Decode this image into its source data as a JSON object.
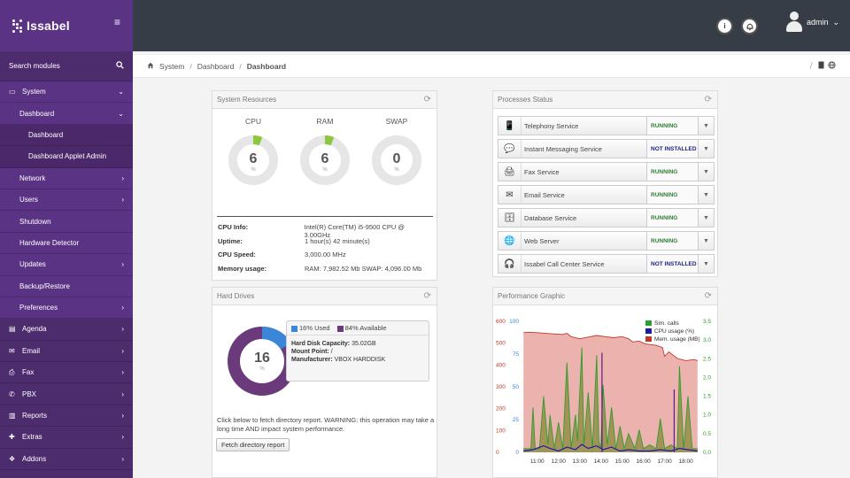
{
  "sidebar": {
    "brand": "Issabel",
    "search_label": "Search modules",
    "items": [
      {
        "label": "System",
        "level": 0,
        "icon": "monitor-icon",
        "arrow": "⌄",
        "active": true
      },
      {
        "label": "Dashboard",
        "level": 1,
        "arrow": "⌄"
      },
      {
        "label": "Dashboard",
        "level": 2
      },
      {
        "label": "Dashboard Applet Admin",
        "level": 2
      },
      {
        "label": "Network",
        "level": 1,
        "arrow": "›"
      },
      {
        "label": "Users",
        "level": 1,
        "arrow": "›"
      },
      {
        "label": "Shutdown",
        "level": 1
      },
      {
        "label": "Hardware Detector",
        "level": 1
      },
      {
        "label": "Updates",
        "level": 1,
        "arrow": "›"
      },
      {
        "label": "Backup/Restore",
        "level": 1
      },
      {
        "label": "Preferences",
        "level": 1,
        "arrow": "›"
      },
      {
        "label": "Agenda",
        "level": 0,
        "icon": "book-icon",
        "arrow": "›"
      },
      {
        "label": "Email",
        "level": 0,
        "icon": "envelope-icon",
        "arrow": "›"
      },
      {
        "label": "Fax",
        "level": 0,
        "icon": "printer-icon",
        "arrow": "›"
      },
      {
        "label": "PBX",
        "level": 0,
        "icon": "phone-icon",
        "arrow": "›"
      },
      {
        "label": "Reports",
        "level": 0,
        "icon": "bar-chart-icon",
        "arrow": "›"
      },
      {
        "label": "Extras",
        "level": 0,
        "icon": "plus-icon",
        "arrow": "›"
      },
      {
        "label": "Addons",
        "level": 0,
        "icon": "cubes-icon",
        "arrow": "›"
      }
    ]
  },
  "topbar": {
    "user": "admin",
    "user_caret": "⌄"
  },
  "breadcrumb": {
    "items": [
      "System",
      "Dashboard"
    ],
    "current": "Dashboard"
  },
  "system_resources": {
    "title": "System Resources",
    "gauges": [
      {
        "label": "CPU",
        "value": "6",
        "unit": "%",
        "fraction": 0.06
      },
      {
        "label": "RAM",
        "value": "6",
        "unit": "%",
        "fraction": 0.06
      },
      {
        "label": "SWAP",
        "value": "0",
        "unit": "%",
        "fraction": 0
      }
    ],
    "info": [
      {
        "key": "CPU Info:",
        "value": "Intel(R) Core(TM) i5-9500 CPU @ 3.00GHz"
      },
      {
        "key": "Uptime:",
        "value": "1 hour(s) 42 minute(s)"
      },
      {
        "key": "CPU Speed:",
        "value": "3,000.00 MHz"
      },
      {
        "key": "Memory usage:",
        "value": "RAM: 7,982.52 Mb SWAP: 4,096.00 Mb"
      }
    ]
  },
  "processes": {
    "title": "Processes Status",
    "items": [
      {
        "name": "Telephony Service",
        "status": "RUNNING",
        "icon": "phone-icon",
        "running": true
      },
      {
        "name": "Instant Messaging Service",
        "status": "NOT INSTALLED",
        "icon": "chat-icon",
        "running": false
      },
      {
        "name": "Fax Service",
        "status": "RUNNING",
        "icon": "fax-icon",
        "running": true
      },
      {
        "name": "Email Service",
        "status": "RUNNING",
        "icon": "envelope-icon",
        "running": true
      },
      {
        "name": "Database Service",
        "status": "RUNNING",
        "icon": "database-icon",
        "running": true
      },
      {
        "name": "Web Server",
        "status": "RUNNING",
        "icon": "globe-icon",
        "running": true
      },
      {
        "name": "Issabel Call Center Service",
        "status": "NOT INSTALLED",
        "icon": "headset-icon",
        "running": false
      }
    ]
  },
  "hard_drives": {
    "title": "Hard Drives",
    "used_percent": "16",
    "used_fraction": 0.16,
    "unit": "%",
    "legend_used": "16% Used",
    "legend_available": "84% Available",
    "capacity_label": "Hard Disk Capacity:",
    "capacity": "35.02GB",
    "mount_label": "Mount Point:",
    "mount": "/",
    "manufacturer_label": "Manufacturer:",
    "manufacturer": "VBOX HARDDISK",
    "note": "Click below to fetch directory report. WARNING: this operation may take a long time AND impact system performance.",
    "button": "Fetch directory report",
    "colors": {
      "used": "#3a87d9",
      "available": "#6b3a7a"
    }
  },
  "performance": {
    "title": "Performance Graphic"
  },
  "chart_data": {
    "type": "area",
    "x_ticks": [
      "11:00",
      "12:00",
      "13:00",
      "14:00",
      "15:00",
      "16:00",
      "17:00",
      "18:00"
    ],
    "x_range": [
      10.3,
      18.6
    ],
    "y_left_ticks": [
      "600",
      "500",
      "400",
      "300",
      "200",
      "100",
      "0"
    ],
    "y_left_range": [
      0,
      600
    ],
    "y_mid_ticks": [
      "100",
      "75",
      "50",
      "25",
      "0"
    ],
    "y_mid_range": [
      0,
      100
    ],
    "y_right_ticks": [
      "3.5",
      "3.0",
      "2.5",
      "2.0",
      "1.5",
      "1.0",
      "0.5",
      "0.0"
    ],
    "y_right_range": [
      0,
      3.5
    ],
    "legend": [
      {
        "name": "Sim. calls",
        "color": "#2e9e2e"
      },
      {
        "name": "CPU usage (%)",
        "color": "#1a1aa8"
      },
      {
        "name": "Mem. usage (MB)",
        "color": "#c0392b"
      }
    ],
    "series": [
      {
        "name": "Mem. usage (MB)",
        "axis": "left",
        "color": "#c0392b",
        "x": [
          10.35,
          10.6,
          11.0,
          11.4,
          11.8,
          12.2,
          12.4,
          12.6,
          13.0,
          13.4,
          13.8,
          14.2,
          14.6,
          15.0,
          15.3,
          15.5,
          15.8,
          16.0,
          16.2,
          16.6,
          16.9,
          17.0,
          17.2,
          17.4,
          17.6,
          18.0,
          18.4,
          18.55
        ],
        "y": [
          548,
          550,
          548,
          545,
          542,
          540,
          545,
          530,
          520,
          528,
          535,
          530,
          525,
          530,
          520,
          505,
          510,
          500,
          495,
          490,
          480,
          440,
          460,
          445,
          430,
          420,
          425,
          420
        ]
      },
      {
        "name": "Sim. calls",
        "axis": "right",
        "color": "#2e9e2e",
        "x": [
          10.35,
          10.7,
          10.8,
          10.9,
          11.1,
          11.3,
          11.5,
          11.6,
          11.8,
          12.0,
          12.2,
          12.4,
          12.6,
          12.8,
          12.9,
          13.1,
          13.2,
          13.4,
          13.6,
          13.8,
          13.9,
          14.0,
          14.1,
          14.3,
          14.5,
          14.7,
          14.9,
          15.1,
          15.3,
          15.6,
          15.8,
          16.0,
          16.3,
          16.6,
          16.8,
          17.0,
          17.3,
          17.6,
          17.7,
          17.9,
          18.1,
          18.3,
          18.55
        ],
        "y": [
          0.1,
          0.1,
          1.2,
          0.1,
          0.1,
          1.5,
          0.2,
          1.0,
          0.1,
          0.8,
          0.1,
          2.4,
          0.1,
          1.0,
          0.3,
          2.8,
          0.2,
          1.6,
          0.1,
          2.6,
          0.3,
          0.1,
          1.8,
          0.2,
          1.2,
          0.1,
          0.7,
          0.1,
          0.5,
          0.1,
          0.6,
          0.1,
          0.2,
          0.1,
          0.9,
          0.1,
          0.2,
          0.1,
          2.3,
          0.1,
          1.5,
          0.1,
          0.1
        ]
      },
      {
        "name": "CPU usage (%)",
        "axis": "mid",
        "color": "#1a1aa8",
        "x": [
          10.35,
          10.8,
          11.3,
          11.6,
          12.0,
          12.4,
          12.8,
          13.1,
          13.4,
          13.8,
          14.1,
          14.5,
          14.9,
          15.3,
          15.8,
          16.3,
          16.8,
          17.3,
          17.7,
          18.1,
          18.55
        ],
        "y": [
          1,
          2,
          5,
          3,
          1,
          4,
          2,
          6,
          3,
          5,
          2,
          4,
          1,
          2,
          1,
          1,
          2,
          1,
          3,
          2,
          1
        ]
      }
    ]
  }
}
